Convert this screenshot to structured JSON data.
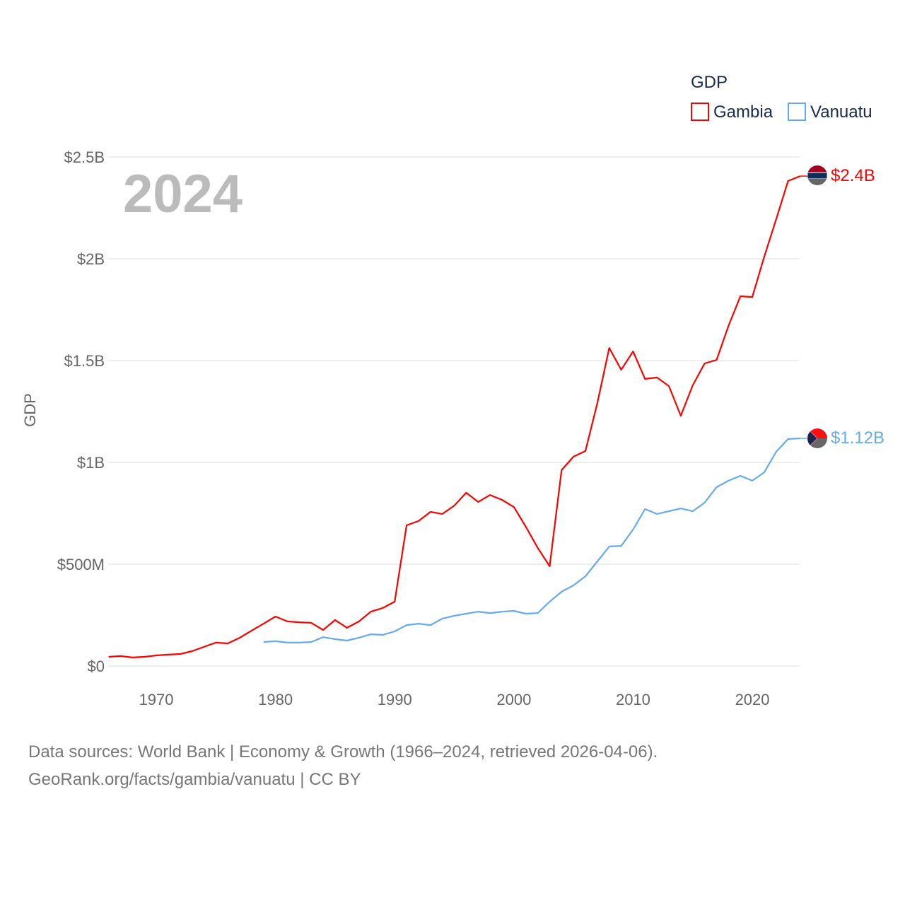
{
  "chart_data": {
    "type": "line",
    "title": "2024",
    "xlabel": "",
    "ylabel": "GDP",
    "xlim": [
      1966,
      2024
    ],
    "ylim": [
      0,
      2.5
    ],
    "y_unit": "billion USD",
    "grid": true,
    "legend": {
      "title": "GDP",
      "placement": "top-right"
    },
    "x_ticks": [
      1970,
      1980,
      1990,
      2000,
      2010,
      2020
    ],
    "x_tick_labels": [
      "1970",
      "1980",
      "1990",
      "2000",
      "2010",
      "2020"
    ],
    "y_ticks": [
      0,
      0.5,
      1,
      1.5,
      2,
      2.5
    ],
    "y_tick_labels": [
      "$0",
      "$500M",
      "$1B",
      "$1.5B",
      "$2B",
      "$2.5B"
    ],
    "series": [
      {
        "name": "Gambia",
        "color": "#ff0000",
        "end_label": "$2.4B",
        "start_year": 1966,
        "values": [
          0.045,
          0.049,
          0.042,
          0.045,
          0.052,
          0.056,
          0.059,
          0.073,
          0.094,
          0.115,
          0.111,
          0.139,
          0.174,
          0.208,
          0.243,
          0.219,
          0.215,
          0.212,
          0.177,
          0.226,
          0.188,
          0.219,
          0.267,
          0.285,
          0.316,
          0.691,
          0.712,
          0.757,
          0.747,
          0.788,
          0.851,
          0.806,
          0.84,
          0.816,
          0.781,
          0.684,
          0.58,
          0.49,
          0.962,
          1.028,
          1.056,
          1.292,
          1.562,
          1.455,
          1.545,
          1.41,
          1.417,
          1.375,
          1.229,
          1.378,
          1.486,
          1.503,
          1.67,
          1.816,
          1.812,
          2.01,
          2.194,
          2.382,
          2.406
        ]
      },
      {
        "name": "Vanuatu",
        "color": "#66aaee",
        "end_label": "$1.12B",
        "start_year": 1979,
        "values": [
          0.118,
          0.122,
          0.115,
          0.115,
          0.118,
          0.142,
          0.132,
          0.125,
          0.139,
          0.156,
          0.153,
          0.17,
          0.201,
          0.208,
          0.201,
          0.233,
          0.247,
          0.257,
          0.267,
          0.26,
          0.267,
          0.271,
          0.257,
          0.26,
          0.316,
          0.365,
          0.396,
          0.441,
          0.514,
          0.587,
          0.59,
          0.67,
          0.771,
          0.747,
          0.76,
          0.774,
          0.76,
          0.802,
          0.878,
          0.91,
          0.934,
          0.91,
          0.951,
          1.052,
          1.115,
          1.118
        ]
      }
    ]
  },
  "footer": {
    "line1": "Data sources: World Bank | Economy & Growth (1966–2024, retrieved 2026-04-06).",
    "line2": "GeoRank.org/facts/gambia/vanuatu | CC BY"
  }
}
